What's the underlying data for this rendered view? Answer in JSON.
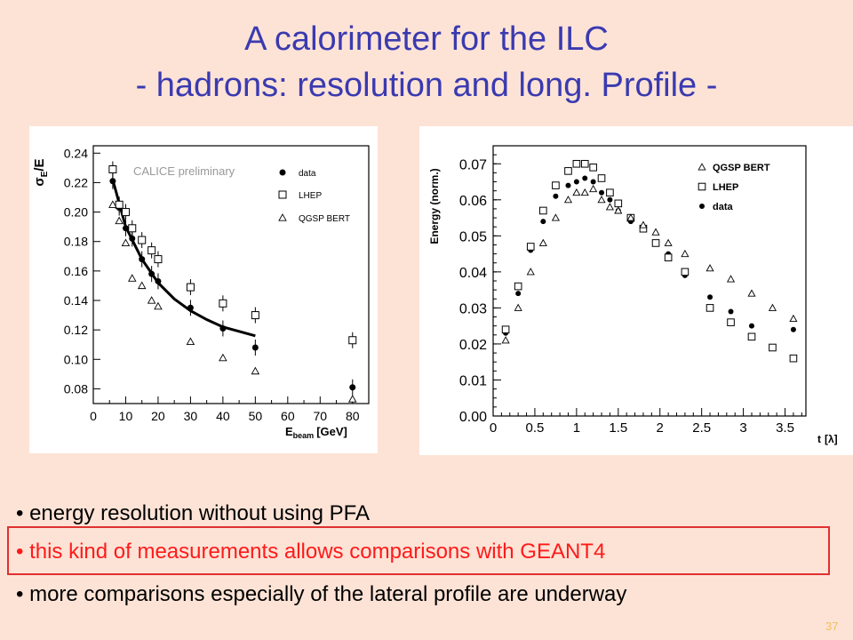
{
  "slide": {
    "title_line1": "A calorimeter for the ILC",
    "title_line2": "- hadrons: resolution and long. Profile -",
    "bullets": [
      "• energy resolution without using PFA",
      "• this kind of measurements allows comparisons with GEANT4",
      "• more comparisons especially of the lateral profile are underway"
    ],
    "page_number": "37",
    "colors": {
      "title": "#3a3ab0",
      "highlight": "#ff1a1a",
      "background": "#fde3d6"
    }
  },
  "chart_data": [
    {
      "type": "scatter",
      "title": "",
      "annotation": "CALICE preliminary",
      "ylabel_main": "σ",
      "ylabel_sub": "E",
      "ylabel_tail": "/E",
      "xlabel_main": "E",
      "xlabel_sub": "beam",
      "xlabel_unit": "[GeV]",
      "xlim": [
        0,
        85
      ],
      "ylim": [
        0.07,
        0.245
      ],
      "xticks": [
        "0",
        "10",
        "20",
        "30",
        "40",
        "50",
        "60",
        "70",
        "80"
      ],
      "yticks": [
        "0.08",
        "0.10",
        "0.12",
        "0.14",
        "0.16",
        "0.18",
        "0.20",
        "0.22",
        "0.24"
      ],
      "legend": [
        "data",
        "LHEP",
        "QGSP BERT"
      ],
      "legend_position": "top-right",
      "series": [
        {
          "name": "data",
          "marker": "dot",
          "x": [
            6,
            8,
            10,
            12,
            15,
            18,
            20,
            30,
            40,
            50,
            80
          ],
          "y": [
            0.221,
            0.203,
            0.189,
            0.182,
            0.168,
            0.158,
            0.153,
            0.135,
            0.121,
            0.108,
            0.081
          ]
        },
        {
          "name": "LHEP",
          "marker": "square",
          "x": [
            6,
            8,
            10,
            12,
            15,
            18,
            20,
            30,
            40,
            50,
            80
          ],
          "y": [
            0.229,
            0.205,
            0.2,
            0.189,
            0.181,
            0.174,
            0.168,
            0.149,
            0.138,
            0.13,
            0.113
          ]
        },
        {
          "name": "QGSP BERT",
          "marker": "triangle",
          "x": [
            6,
            8,
            10,
            12,
            15,
            18,
            20,
            30,
            40,
            50,
            80
          ],
          "y": [
            0.205,
            0.194,
            0.179,
            0.155,
            0.15,
            0.14,
            0.136,
            0.112,
            0.101,
            0.092,
            0.073
          ]
        }
      ],
      "fit_curve": {
        "x": [
          6,
          10,
          15,
          20,
          25,
          30,
          35,
          40,
          45,
          50
        ],
        "y": [
          0.222,
          0.19,
          0.168,
          0.152,
          0.141,
          0.133,
          0.127,
          0.122,
          0.119,
          0.116
        ]
      }
    },
    {
      "type": "scatter",
      "title": "",
      "ylabel": "Energy (norm.)",
      "xlabel_main": "t",
      "xlabel_unit": "[λ]",
      "xlim": [
        0,
        3.75
      ],
      "ylim": [
        0,
        0.075
      ],
      "xticks": [
        "0",
        "0.5",
        "1",
        "1.5",
        "2",
        "2.5",
        "3",
        "3.5"
      ],
      "yticks": [
        "0.00",
        "0.01",
        "0.02",
        "0.03",
        "0.04",
        "0.05",
        "0.06",
        "0.07"
      ],
      "legend": [
        "QGSP BERT",
        "LHEP",
        "data"
      ],
      "legend_position": "top-right",
      "series": [
        {
          "name": "data",
          "marker": "dot",
          "x": [
            0.15,
            0.3,
            0.45,
            0.6,
            0.75,
            0.9,
            1.0,
            1.1,
            1.2,
            1.3,
            1.4,
            1.5,
            1.65,
            1.8,
            1.95,
            2.1,
            2.3,
            2.6,
            2.85,
            3.1,
            3.35,
            3.6
          ],
          "y": [
            0.023,
            0.034,
            0.046,
            0.054,
            0.061,
            0.064,
            0.065,
            0.066,
            0.065,
            0.062,
            0.06,
            0.057,
            0.054,
            0.052,
            0.048,
            0.045,
            0.039,
            0.033,
            0.029,
            0.025,
            0.019,
            0.024
          ]
        },
        {
          "name": "LHEP",
          "marker": "square",
          "x": [
            0.15,
            0.3,
            0.45,
            0.6,
            0.75,
            0.9,
            1.0,
            1.1,
            1.2,
            1.3,
            1.4,
            1.5,
            1.65,
            1.8,
            1.95,
            2.1,
            2.3,
            2.6,
            2.85,
            3.1,
            3.35,
            3.6
          ],
          "y": [
            0.024,
            0.036,
            0.047,
            0.057,
            0.064,
            0.068,
            0.07,
            0.07,
            0.069,
            0.066,
            0.062,
            0.059,
            0.055,
            0.052,
            0.048,
            0.044,
            0.04,
            0.03,
            0.026,
            0.022,
            0.019,
            0.016
          ]
        },
        {
          "name": "QGSP BERT",
          "marker": "triangle",
          "x": [
            0.15,
            0.3,
            0.45,
            0.6,
            0.75,
            0.9,
            1.0,
            1.1,
            1.2,
            1.3,
            1.4,
            1.5,
            1.65,
            1.8,
            1.95,
            2.1,
            2.3,
            2.6,
            2.85,
            3.1,
            3.35,
            3.6
          ],
          "y": [
            0.021,
            0.03,
            0.04,
            0.048,
            0.055,
            0.06,
            0.062,
            0.062,
            0.063,
            0.06,
            0.058,
            0.057,
            0.055,
            0.053,
            0.051,
            0.048,
            0.045,
            0.041,
            0.038,
            0.034,
            0.03,
            0.027
          ]
        }
      ]
    }
  ]
}
